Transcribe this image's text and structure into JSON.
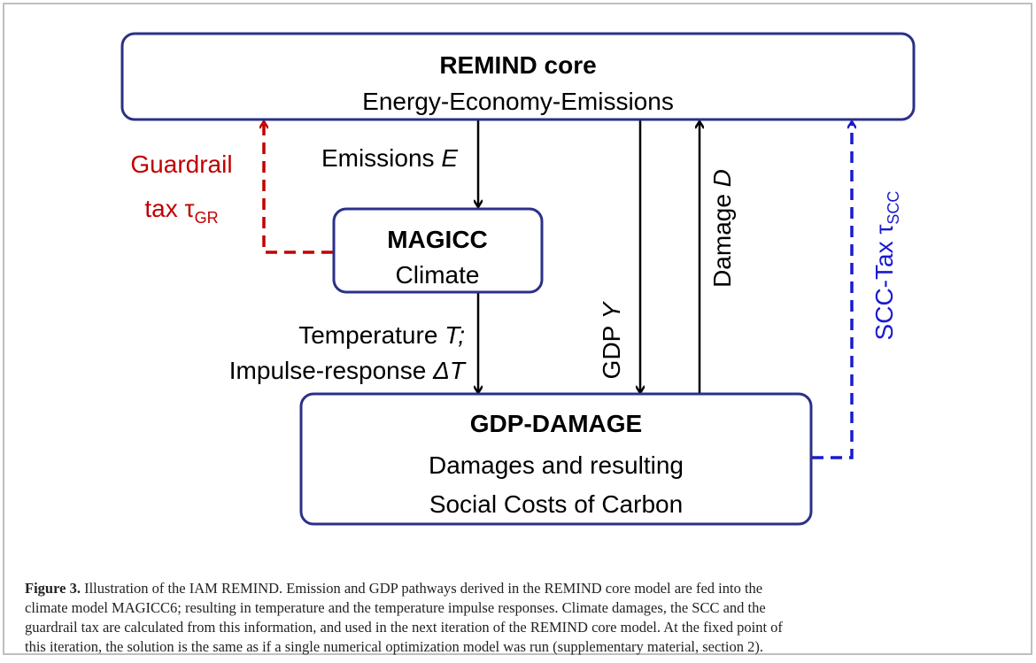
{
  "nodes": [
    {
      "title": "REMIND core",
      "lines": [
        "Energy-Economy-Emissions"
      ]
    },
    {
      "title": "MAGICC",
      "lines": [
        "Climate"
      ]
    },
    {
      "title": "GDP-DAMAGE",
      "lines": [
        "Damages and resulting",
        "Social Costs of Carbon"
      ]
    }
  ],
  "edges": [
    {
      "lines": [
        {
          "text": "Emissions ",
          "italic": "E"
        }
      ]
    },
    {
      "lines": [
        {
          "text": "Temperature ",
          "italic": "T;"
        },
        {
          "text": "Impulse-response ",
          "italic": "ΔT"
        }
      ]
    },
    {
      "lines": [
        {
          "text": "GDP ",
          "italic": "Y"
        }
      ]
    },
    {
      "lines": [
        {
          "text": "Damage ",
          "italic": "D"
        }
      ]
    },
    {
      "lines": [
        {
          "text": "Guardrail"
        },
        {
          "text": "tax τ",
          "subscript": "GR"
        }
      ]
    },
    {
      "lines": [
        {
          "text": "SCC-Tax τ",
          "subscript": "SCC"
        }
      ]
    }
  ],
  "caption": {
    "label": "Figure 3.",
    "lines": [
      " Illustration of the IAM REMIND. Emission and GDP pathways derived in the REMIND core model are fed into the",
      "climate model MAGICC6; resulting in temperature and the temperature impulse responses. Climate damages, the SCC and the",
      "guardrail tax are calculated from this information, and used in the next iteration of the REMIND core model. At the fixed point of",
      "this iteration, the solution is the same as if a single numerical optimization model was run (supplementary material, section 2)."
    ]
  }
}
